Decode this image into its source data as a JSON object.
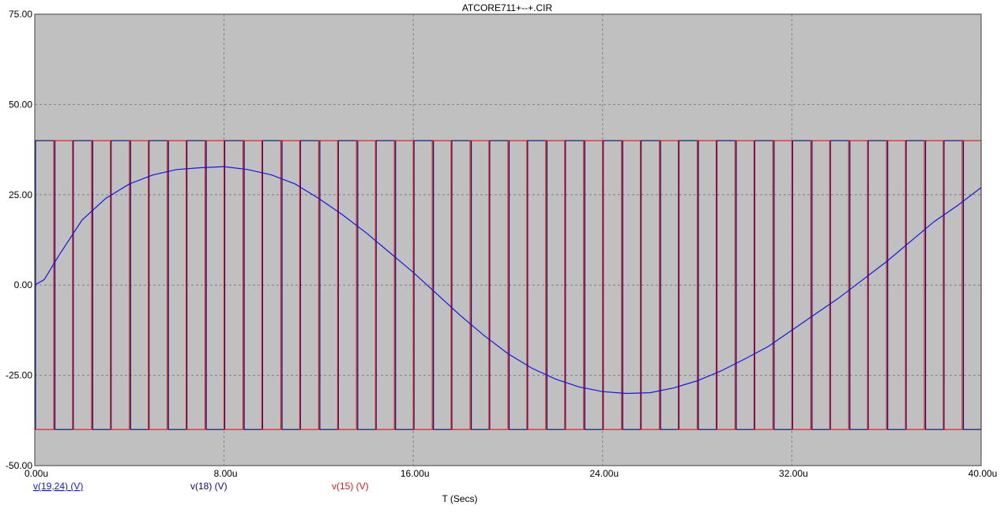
{
  "chart_data": {
    "type": "line",
    "title": "ATCORE711+--+.CIR",
    "xlabel": "T (Secs)",
    "ylabel": "",
    "xlim": [
      0,
      40
    ],
    "ylim": [
      -50,
      75
    ],
    "x_ticks": [
      0,
      8,
      16,
      24,
      32,
      40
    ],
    "x_tick_labels": [
      "0.00u",
      "8.00u",
      "16.00u",
      "24.00u",
      "32.00u",
      "40.00u"
    ],
    "y_ticks": [
      75,
      50,
      25,
      0,
      -25,
      -50
    ],
    "y_tick_labels": [
      "75.00",
      "50.00",
      "25.00",
      "0.00",
      "-25.00",
      "-50.00"
    ],
    "grid": true,
    "legend_position": "bottom-left",
    "colors": {
      "plot_background": "#c0c0c0",
      "grid": "#808080",
      "v19_24": "#1414e6",
      "v18": "#0a0a78",
      "v15": "#e61414"
    },
    "series": [
      {
        "name": "v(19,24) (V)",
        "waveform": "sine",
        "x": [
          0,
          0.4,
          1,
          2,
          3,
          4,
          5,
          6,
          7,
          8,
          9,
          10,
          11,
          12,
          13,
          14,
          15,
          16,
          17,
          18,
          19,
          20,
          21,
          22,
          23,
          24,
          25,
          26,
          27,
          28,
          29,
          30,
          31,
          32,
          33,
          34,
          35,
          36,
          37,
          38,
          39,
          40
        ],
        "values": [
          0.0,
          1.5,
          8.0,
          18.0,
          24.0,
          28.0,
          30.5,
          32.0,
          32.5,
          32.8,
          32.0,
          30.5,
          28.0,
          24.0,
          19.5,
          14.5,
          9.0,
          3.5,
          -2.5,
          -8.5,
          -14.0,
          -19.0,
          -23.0,
          -26.0,
          -28.2,
          -29.5,
          -30.0,
          -29.8,
          -28.5,
          -26.5,
          -23.8,
          -20.5,
          -17.0,
          -12.5,
          -8.0,
          -3.5,
          1.5,
          6.5,
          12.0,
          17.5,
          22.0,
          27.0
        ]
      },
      {
        "name": "v(18) (V)",
        "waveform": "square",
        "period": 1.6,
        "high": 40,
        "low": -40,
        "rise_times": [
          0.03,
          1.63,
          3.23,
          4.83,
          6.43,
          8.03,
          9.63,
          11.23,
          12.83,
          14.43,
          16.03,
          17.63,
          19.23,
          20.83,
          22.43,
          24.03,
          25.63,
          27.23,
          28.83,
          30.43,
          32.03,
          33.63,
          35.23,
          36.83,
          38.43
        ],
        "fall_times": [
          0.85,
          2.45,
          4.05,
          5.65,
          7.25,
          8.85,
          10.45,
          12.05,
          13.65,
          15.25,
          16.85,
          18.45,
          20.05,
          21.65,
          23.25,
          24.85,
          26.45,
          28.05,
          29.65,
          31.25,
          32.85,
          34.45,
          36.05,
          37.65,
          39.25
        ]
      },
      {
        "name": "v(15) (V)",
        "waveform": "square",
        "period": 1.6,
        "high": 40,
        "low": -40,
        "rise_times": [
          0.8,
          2.4,
          4.0,
          5.6,
          7.2,
          8.8,
          10.4,
          12.0,
          13.6,
          15.2,
          16.8,
          18.4,
          20.0,
          21.6,
          23.2,
          24.8,
          26.4,
          28.0,
          29.6,
          31.2,
          32.8,
          34.4,
          36.0,
          37.6,
          39.2
        ],
        "fall_times": [
          1.6,
          3.2,
          4.8,
          6.4,
          8.0,
          9.6,
          11.2,
          12.8,
          14.4,
          16.0,
          17.6,
          19.2,
          20.8,
          22.4,
          24.0,
          25.6,
          27.2,
          28.8,
          30.4,
          32.0,
          33.6,
          35.2,
          36.8,
          38.4,
          40.0
        ]
      }
    ]
  }
}
